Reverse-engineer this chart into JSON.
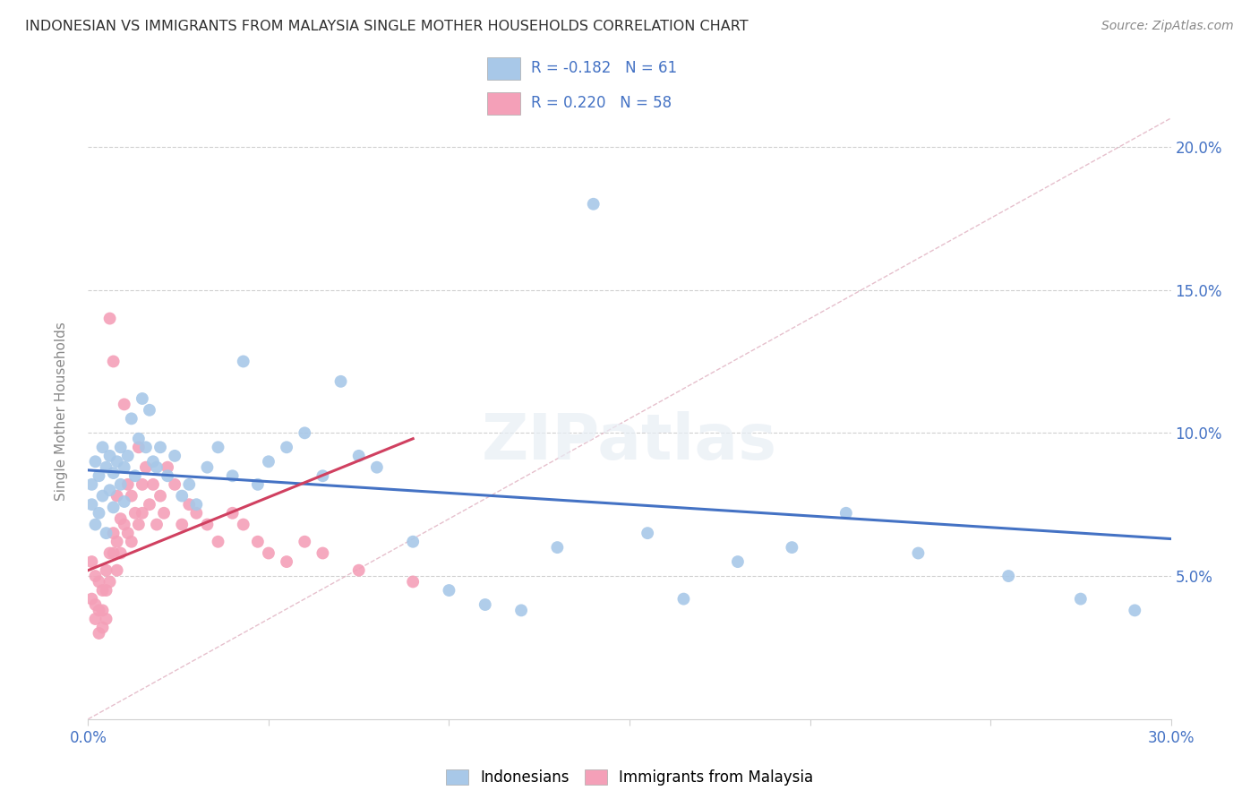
{
  "title": "INDONESIAN VS IMMIGRANTS FROM MALAYSIA SINGLE MOTHER HOUSEHOLDS CORRELATION CHART",
  "source": "Source: ZipAtlas.com",
  "ylabel": "Single Mother Households",
  "xlim": [
    0.0,
    0.3
  ],
  "ylim": [
    0.0,
    0.215
  ],
  "yticks": [
    0.05,
    0.1,
    0.15,
    0.2
  ],
  "ytick_labels": [
    "5.0%",
    "10.0%",
    "15.0%",
    "20.0%"
  ],
  "legend_label1": "Indonesians",
  "legend_label2": "Immigrants from Malaysia",
  "R1": -0.182,
  "N1": 61,
  "R2": 0.22,
  "N2": 58,
  "color_indonesian": "#a8c8e8",
  "color_malaysia": "#f4a0b8",
  "color_line1": "#4472c4",
  "color_line2": "#d04060",
  "color_diag": "#e0b0c0",
  "title_color": "#303030",
  "axis_color": "#4472c4",
  "background_color": "#ffffff",
  "indonesian_x": [
    0.001,
    0.001,
    0.002,
    0.002,
    0.003,
    0.003,
    0.004,
    0.004,
    0.005,
    0.005,
    0.006,
    0.006,
    0.007,
    0.007,
    0.008,
    0.009,
    0.009,
    0.01,
    0.01,
    0.011,
    0.012,
    0.013,
    0.014,
    0.015,
    0.016,
    0.017,
    0.018,
    0.019,
    0.02,
    0.022,
    0.024,
    0.026,
    0.028,
    0.03,
    0.033,
    0.036,
    0.04,
    0.043,
    0.047,
    0.05,
    0.055,
    0.06,
    0.065,
    0.07,
    0.075,
    0.08,
    0.09,
    0.1,
    0.11,
    0.12,
    0.13,
    0.14,
    0.155,
    0.165,
    0.18,
    0.195,
    0.21,
    0.23,
    0.255,
    0.275,
    0.29
  ],
  "indonesian_y": [
    0.082,
    0.075,
    0.09,
    0.068,
    0.085,
    0.072,
    0.095,
    0.078,
    0.088,
    0.065,
    0.092,
    0.08,
    0.086,
    0.074,
    0.09,
    0.082,
    0.095,
    0.088,
    0.076,
    0.092,
    0.105,
    0.085,
    0.098,
    0.112,
    0.095,
    0.108,
    0.09,
    0.088,
    0.095,
    0.085,
    0.092,
    0.078,
    0.082,
    0.075,
    0.088,
    0.095,
    0.085,
    0.125,
    0.082,
    0.09,
    0.095,
    0.1,
    0.085,
    0.118,
    0.092,
    0.088,
    0.062,
    0.045,
    0.04,
    0.038,
    0.06,
    0.18,
    0.065,
    0.042,
    0.055,
    0.06,
    0.072,
    0.058,
    0.05,
    0.042,
    0.038
  ],
  "malaysia_x": [
    0.001,
    0.001,
    0.002,
    0.002,
    0.002,
    0.003,
    0.003,
    0.003,
    0.004,
    0.004,
    0.004,
    0.005,
    0.005,
    0.005,
    0.006,
    0.006,
    0.006,
    0.007,
    0.007,
    0.007,
    0.008,
    0.008,
    0.008,
    0.009,
    0.009,
    0.01,
    0.01,
    0.011,
    0.011,
    0.012,
    0.012,
    0.013,
    0.014,
    0.014,
    0.015,
    0.015,
    0.016,
    0.017,
    0.018,
    0.019,
    0.02,
    0.021,
    0.022,
    0.024,
    0.026,
    0.028,
    0.03,
    0.033,
    0.036,
    0.04,
    0.043,
    0.047,
    0.05,
    0.055,
    0.06,
    0.065,
    0.075,
    0.09
  ],
  "malaysia_y": [
    0.055,
    0.042,
    0.05,
    0.04,
    0.035,
    0.048,
    0.038,
    0.03,
    0.045,
    0.038,
    0.032,
    0.052,
    0.045,
    0.035,
    0.14,
    0.058,
    0.048,
    0.125,
    0.065,
    0.058,
    0.078,
    0.062,
    0.052,
    0.07,
    0.058,
    0.11,
    0.068,
    0.082,
    0.065,
    0.078,
    0.062,
    0.072,
    0.095,
    0.068,
    0.082,
    0.072,
    0.088,
    0.075,
    0.082,
    0.068,
    0.078,
    0.072,
    0.088,
    0.082,
    0.068,
    0.075,
    0.072,
    0.068,
    0.062,
    0.072,
    0.068,
    0.062,
    0.058,
    0.055,
    0.062,
    0.058,
    0.052,
    0.048
  ],
  "blue_line_x": [
    0.0,
    0.3
  ],
  "blue_line_y": [
    0.087,
    0.063
  ],
  "pink_line_x": [
    0.0,
    0.09
  ],
  "pink_line_y": [
    0.052,
    0.098
  ]
}
